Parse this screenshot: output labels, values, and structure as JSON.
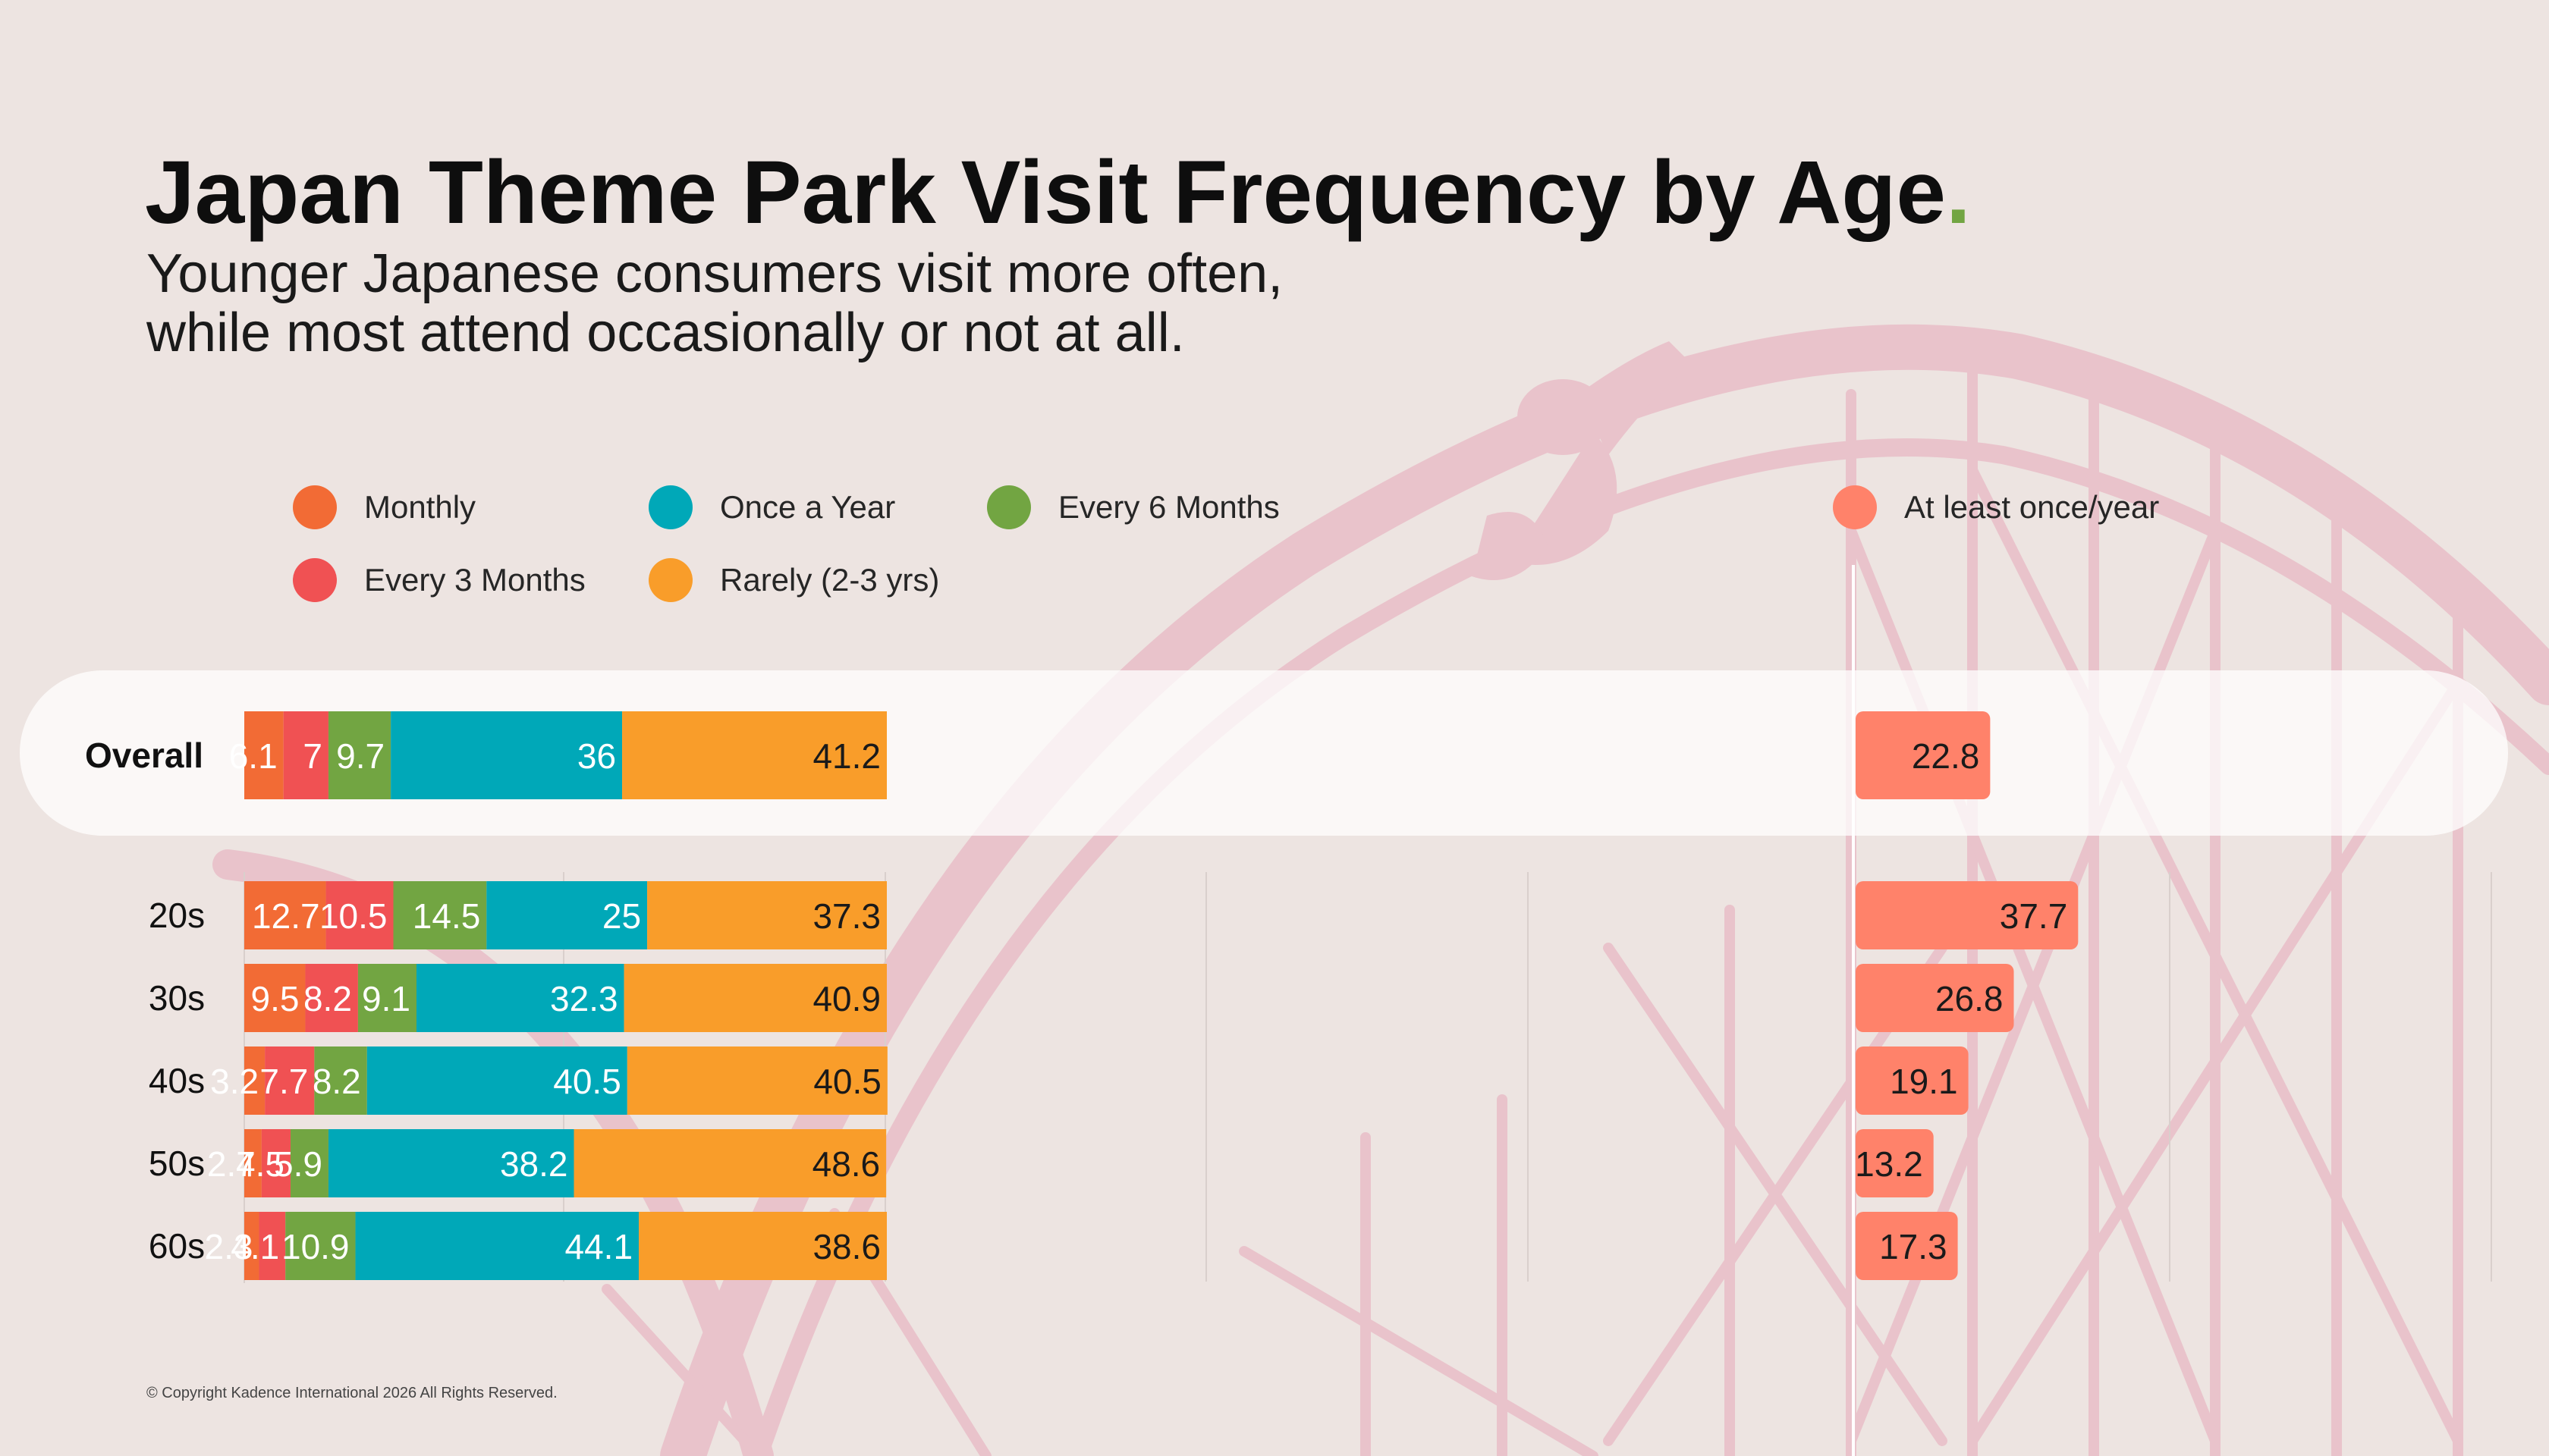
{
  "header": {
    "title": "Japan Theme Park Visit Frequency by Age",
    "title_dot": ".",
    "subtitle_line1": "Younger Japanese consumers visit more often,",
    "subtitle_line2": "while most attend occasionally or not at all."
  },
  "legend": {
    "monthly": "Monthly",
    "once_a_year": "Once a Year",
    "every_6_months": "Every 6 Months",
    "every_3_months": "Every 3 Months",
    "rarely": "Rarely (2-3 yrs)",
    "at_least_once": "At least once/year"
  },
  "colors": {
    "Monthly": "#f26b35",
    "Every 3 Months": "#f05153",
    "Every 6 Months": "#72a542",
    "Once a Year": "#00a8b8",
    "Rarely (2-3 yrs)": "#f99d2a",
    "At least once/year": "#ff826a",
    "background": "#ede4e1",
    "accent_dot": "#72a542",
    "decoration": "#e8c2c9"
  },
  "footer": {
    "copyright": "© Copyright Kadence International 2026 All Rights Reserved."
  },
  "chart_data": {
    "type": "bar",
    "orientation": "horizontal",
    "stacked": true,
    "categories": [
      "Overall",
      "20s",
      "30s",
      "40s",
      "50s",
      "60s"
    ],
    "series": [
      {
        "name": "Monthly",
        "values": [
          6.1,
          12.7,
          9.5,
          3.2,
          2.7,
          2.3
        ]
      },
      {
        "name": "Every 3 Months",
        "values": [
          7,
          10.5,
          8.2,
          7.7,
          4.5,
          4.1
        ]
      },
      {
        "name": "Every 6 Months",
        "values": [
          9.7,
          14.5,
          9.1,
          8.2,
          5.9,
          10.9
        ]
      },
      {
        "name": "Once a Year",
        "values": [
          36,
          25,
          32.3,
          40.5,
          38.2,
          44.1
        ]
      },
      {
        "name": "Rarely (2-3 yrs)",
        "values": [
          41.2,
          37.3,
          40.9,
          40.5,
          48.6,
          38.6
        ]
      }
    ],
    "right_series": {
      "name": "At least once/year",
      "values": [
        22.8,
        37.7,
        26.8,
        19.1,
        13.2,
        17.3
      ]
    },
    "data_labels": {
      "Monthly": [
        "6.1",
        "12.7",
        "9.5",
        "3.2",
        "2.7",
        "2.3"
      ],
      "Every 3 Months": [
        "7",
        "10.5",
        "8.2",
        "7.7",
        "4.5",
        "4.1"
      ],
      "Every 6 Months": [
        "9.7",
        "14.5",
        "9.1",
        "8.2",
        "5.9",
        "10.9"
      ],
      "Once a Year": [
        "36",
        "25",
        "32.3",
        "40.5",
        "38.2",
        "44.1"
      ],
      "Rarely (2-3 yrs)": [
        "41.2",
        "37.3",
        "40.9",
        "40.5",
        "48.6",
        "38.6"
      ],
      "At least once/year": [
        "22.8",
        "37.7",
        "26.8",
        "19.1",
        "13.2",
        "17.3"
      ]
    },
    "grid": true,
    "legend_position": "top"
  }
}
